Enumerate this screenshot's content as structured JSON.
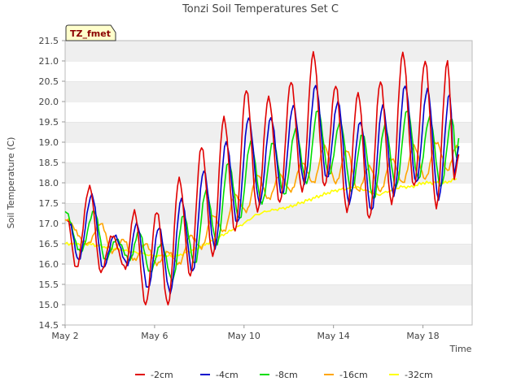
{
  "chart_data": {
    "type": "line",
    "title": "Tonzi Soil Temperatures Set C",
    "xlabel": "Time",
    "ylabel": "Soil Temperature (C)",
    "badge": "TZ_fmet",
    "xlim_days": [
      2,
      20.2
    ],
    "ylim": [
      14.5,
      21.5
    ],
    "yticks": [
      "14.5",
      "15.0",
      "15.5",
      "16.0",
      "16.5",
      "17.0",
      "17.5",
      "18.0",
      "18.5",
      "19.0",
      "19.5",
      "20.0",
      "20.5",
      "21.0",
      "21.5"
    ],
    "xticks": [
      {
        "day": 2,
        "label": "May 2"
      },
      {
        "day": 6,
        "label": "May 6"
      },
      {
        "day": 10,
        "label": "May 10"
      },
      {
        "day": 14,
        "label": "May 14"
      },
      {
        "day": 18,
        "label": "May 18"
      }
    ],
    "grid": "horizontal bands",
    "legend_position": "bottom",
    "series": [
      {
        "name": "-2cm",
        "color": "#e00000",
        "min": [
          [
            2.5,
            15.9
          ],
          [
            3.6,
            15.8
          ],
          [
            4.7,
            15.9
          ],
          [
            5.6,
            15.0
          ],
          [
            6.6,
            15.0
          ],
          [
            7.6,
            15.7
          ],
          [
            8.6,
            16.2
          ],
          [
            9.6,
            16.8
          ],
          [
            10.6,
            17.3
          ],
          [
            11.6,
            17.5
          ],
          [
            12.6,
            17.8
          ],
          [
            13.6,
            17.9
          ],
          [
            14.6,
            17.3
          ],
          [
            15.6,
            17.1
          ],
          [
            16.6,
            17.5
          ],
          [
            17.6,
            17.9
          ],
          [
            18.6,
            17.4
          ],
          [
            19.4,
            18.1
          ]
        ],
        "max": [
          [
            2.1,
            17.1
          ],
          [
            3.1,
            17.9
          ],
          [
            4.1,
            16.7
          ],
          [
            5.1,
            17.3
          ],
          [
            6.1,
            17.3
          ],
          [
            7.1,
            18.1
          ],
          [
            8.1,
            18.9
          ],
          [
            9.1,
            19.6
          ],
          [
            10.1,
            20.3
          ],
          [
            11.1,
            20.1
          ],
          [
            12.1,
            20.5
          ],
          [
            13.1,
            21.2
          ],
          [
            14.1,
            20.4
          ],
          [
            15.1,
            20.2
          ],
          [
            16.1,
            20.5
          ],
          [
            17.1,
            21.2
          ],
          [
            18.1,
            21.0
          ],
          [
            19.1,
            21.0
          ]
        ],
        "end": [
          19.6,
          18.7
        ]
      },
      {
        "name": "-4cm",
        "color": "#0000cc",
        "min": [
          [
            2.6,
            16.1
          ],
          [
            3.7,
            15.9
          ],
          [
            4.8,
            16.0
          ],
          [
            5.7,
            15.4
          ],
          [
            6.7,
            15.3
          ],
          [
            7.7,
            15.8
          ],
          [
            8.7,
            16.4
          ],
          [
            9.7,
            17.0
          ],
          [
            10.7,
            17.5
          ],
          [
            11.7,
            17.7
          ],
          [
            12.7,
            18.0
          ],
          [
            13.7,
            18.1
          ],
          [
            14.7,
            17.5
          ],
          [
            15.7,
            17.3
          ],
          [
            16.7,
            17.7
          ],
          [
            17.7,
            18.0
          ],
          [
            18.7,
            17.6
          ],
          [
            19.4,
            18.2
          ]
        ],
        "max": [
          [
            2.2,
            17.0
          ],
          [
            3.2,
            17.7
          ],
          [
            4.2,
            16.7
          ],
          [
            5.2,
            17.0
          ],
          [
            6.2,
            16.9
          ],
          [
            7.2,
            17.6
          ],
          [
            8.2,
            18.3
          ],
          [
            9.2,
            19.0
          ],
          [
            10.2,
            19.6
          ],
          [
            11.2,
            19.6
          ],
          [
            12.2,
            19.9
          ],
          [
            13.2,
            20.4
          ],
          [
            14.2,
            20.0
          ],
          [
            15.2,
            19.5
          ],
          [
            16.2,
            19.9
          ],
          [
            17.2,
            20.4
          ],
          [
            18.2,
            20.3
          ],
          [
            19.2,
            20.2
          ]
        ],
        "end": [
          19.6,
          18.9
        ]
      },
      {
        "name": "-8cm",
        "color": "#00dd00",
        "min": [
          [
            2.7,
            16.3
          ],
          [
            3.8,
            16.1
          ],
          [
            4.9,
            16.1
          ],
          [
            5.8,
            15.8
          ],
          [
            6.8,
            15.6
          ],
          [
            7.8,
            16.0
          ],
          [
            8.8,
            16.5
          ],
          [
            9.8,
            17.1
          ],
          [
            10.8,
            17.5
          ],
          [
            11.8,
            17.7
          ],
          [
            12.8,
            18.0
          ],
          [
            13.8,
            18.2
          ],
          [
            14.8,
            17.8
          ],
          [
            15.8,
            17.6
          ],
          [
            16.8,
            17.9
          ],
          [
            17.8,
            18.1
          ],
          [
            18.8,
            17.9
          ],
          [
            19.5,
            18.6
          ]
        ],
        "max": [
          [
            2.0,
            17.3
          ],
          [
            3.3,
            17.3
          ],
          [
            4.3,
            16.6
          ],
          [
            5.3,
            16.8
          ],
          [
            6.3,
            16.5
          ],
          [
            7.3,
            17.2
          ],
          [
            8.3,
            17.8
          ],
          [
            9.3,
            18.5
          ],
          [
            10.3,
            19.0
          ],
          [
            11.3,
            19.0
          ],
          [
            12.3,
            19.3
          ],
          [
            13.3,
            19.8
          ],
          [
            14.3,
            19.5
          ],
          [
            15.3,
            19.2
          ],
          [
            16.3,
            19.4
          ],
          [
            17.3,
            19.8
          ],
          [
            18.3,
            19.6
          ],
          [
            19.3,
            19.6
          ]
        ],
        "end": [
          19.6,
          19.1
        ]
      },
      {
        "name": "-16cm",
        "color": "#ffa500",
        "min": [
          [
            3.0,
            16.5
          ],
          [
            4.1,
            16.3
          ],
          [
            5.1,
            16.1
          ],
          [
            6.1,
            16.0
          ],
          [
            7.1,
            16.0
          ],
          [
            8.1,
            16.4
          ],
          [
            9.1,
            16.8
          ],
          [
            10.1,
            17.3
          ],
          [
            11.1,
            17.6
          ],
          [
            12.1,
            17.8
          ],
          [
            13.1,
            18.0
          ],
          [
            14.1,
            18.0
          ],
          [
            15.1,
            17.8
          ],
          [
            16.1,
            17.8
          ],
          [
            17.1,
            18.0
          ],
          [
            18.1,
            18.1
          ],
          [
            19.1,
            18.3
          ]
        ],
        "max": [
          [
            2.0,
            17.1
          ],
          [
            3.6,
            17.0
          ],
          [
            4.6,
            16.6
          ],
          [
            5.6,
            16.5
          ],
          [
            6.6,
            16.3
          ],
          [
            7.6,
            16.7
          ],
          [
            8.6,
            17.2
          ],
          [
            9.6,
            17.7
          ],
          [
            10.6,
            18.2
          ],
          [
            11.6,
            18.2
          ],
          [
            12.6,
            18.5
          ],
          [
            13.6,
            18.9
          ],
          [
            14.6,
            18.8
          ],
          [
            15.6,
            18.4
          ],
          [
            16.6,
            18.6
          ],
          [
            17.6,
            18.9
          ],
          [
            18.6,
            19.0
          ],
          [
            19.5,
            18.9
          ]
        ],
        "end": [
          19.6,
          18.9
        ]
      },
      {
        "name": "-32cm",
        "color": "#ffff00",
        "points": [
          [
            2.0,
            16.5
          ],
          [
            3.0,
            16.5
          ],
          [
            4.0,
            16.4
          ],
          [
            5.0,
            16.3
          ],
          [
            6.0,
            16.2
          ],
          [
            7.0,
            16.2
          ],
          [
            7.5,
            16.3
          ],
          [
            8.0,
            16.4
          ],
          [
            9.0,
            16.7
          ],
          [
            10.0,
            17.0
          ],
          [
            10.5,
            17.2
          ],
          [
            11.0,
            17.3
          ],
          [
            12.0,
            17.4
          ],
          [
            12.5,
            17.5
          ],
          [
            13.0,
            17.6
          ],
          [
            13.5,
            17.7
          ],
          [
            14.0,
            17.8
          ],
          [
            15.0,
            17.9
          ],
          [
            15.5,
            17.8
          ],
          [
            16.0,
            17.7
          ],
          [
            17.0,
            17.9
          ],
          [
            17.5,
            17.9
          ],
          [
            18.0,
            18.0
          ],
          [
            18.5,
            18.0
          ],
          [
            19.0,
            18.0
          ],
          [
            19.5,
            18.1
          ]
        ]
      }
    ]
  }
}
